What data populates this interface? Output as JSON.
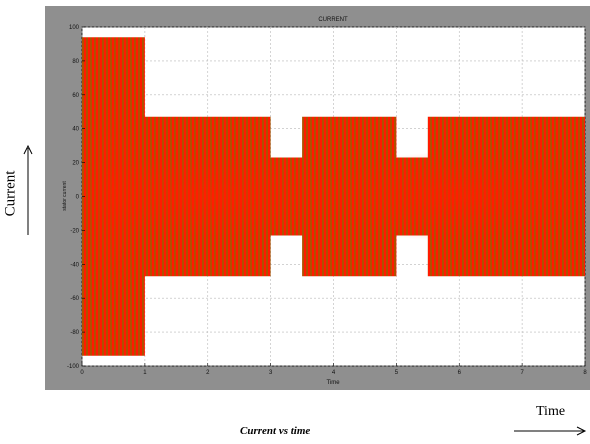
{
  "chart_data": {
    "type": "area",
    "title": "CURRENT",
    "xlabel": "Time",
    "ylabel": "stator current",
    "xlim": [
      0,
      8
    ],
    "ylim": [
      -100,
      100
    ],
    "x_ticks": [
      0,
      1,
      2,
      3,
      4,
      5,
      6,
      7,
      8
    ],
    "y_ticks": [
      -100,
      -80,
      -60,
      -40,
      -20,
      0,
      20,
      40,
      60,
      80,
      100
    ],
    "grid": true,
    "series": [
      {
        "color": "#e81c00",
        "envelope": {
          "x": [
            0,
            1,
            1,
            3,
            3,
            3.5,
            3.5,
            5,
            5,
            5.5,
            5.5,
            8
          ],
          "amplitude": [
            94,
            94,
            47,
            47,
            23,
            23,
            47,
            47,
            23,
            23,
            47,
            47
          ]
        }
      }
    ],
    "annotations": {
      "y_arrow_label": "Current",
      "x_arrow_label": "Time",
      "caption": "Current vs time"
    },
    "colors": {
      "figure_bg": "#8f8f8f",
      "axes_bg": "#ffffff",
      "signal_dark": "#a85a00",
      "signal_bright": "#ff1a00"
    }
  }
}
